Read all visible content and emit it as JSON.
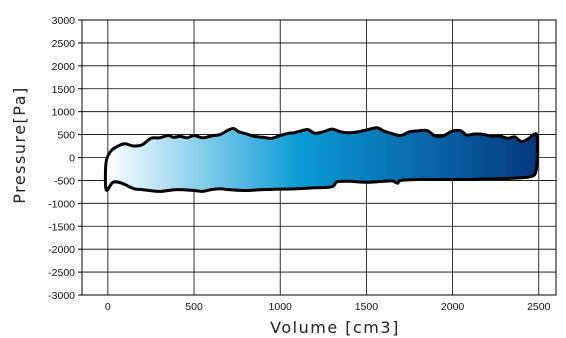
{
  "chart_data": {
    "type": "area",
    "title": "",
    "xlabel": "Volume [cm3]",
    "ylabel": "Pressure[Pa]",
    "xlim": [
      -150,
      2600
    ],
    "ylim": [
      -3000,
      3000
    ],
    "xticks": [
      0,
      500,
      1000,
      1500,
      2000,
      2500
    ],
    "yticks": [
      3000,
      2500,
      2000,
      1500,
      1000,
      500,
      0,
      -500,
      -1000,
      -1500,
      -2000,
      -2500,
      -3000
    ],
    "grid": true,
    "legend": "none",
    "fill_gradient": [
      "#ffffff",
      "#0a9bd6",
      "#06387f"
    ],
    "outline_color": "#000000",
    "series": [
      {
        "x": [
          -10,
          20,
          60,
          100,
          150,
          200,
          250,
          300,
          350,
          380,
          420,
          460,
          500,
          550,
          600,
          650,
          700,
          730,
          760,
          800,
          850,
          900,
          950,
          1000,
          1050,
          1080,
          1120,
          1160,
          1200,
          1250,
          1300,
          1350,
          1400,
          1450,
          1500,
          1560,
          1600,
          1650,
          1700,
          1750,
          1800,
          1850,
          1900,
          1950,
          2000,
          2050,
          2080,
          2120,
          2170,
          2220,
          2270,
          2320,
          2360,
          2400,
          2440,
          2470,
          2490
        ],
        "y": [
          -100,
          150,
          250,
          300,
          250,
          280,
          420,
          430,
          480,
          440,
          460,
          430,
          480,
          430,
          470,
          500,
          600,
          630,
          560,
          520,
          460,
          440,
          420,
          480,
          530,
          540,
          580,
          610,
          530,
          560,
          620,
          560,
          540,
          560,
          600,
          650,
          580,
          520,
          480,
          560,
          580,
          590,
          470,
          480,
          580,
          580,
          490,
          510,
          510,
          470,
          470,
          420,
          450,
          350,
          410,
          500,
          460
        ]
      },
      {
        "x": [
          -10,
          30,
          80,
          150,
          200,
          300,
          400,
          500,
          550,
          600,
          650,
          700,
          800,
          900,
          1000,
          1100,
          1200,
          1300,
          1330,
          1400,
          1500,
          1600,
          1650,
          1680,
          1700,
          1800,
          1900,
          2000,
          2100,
          2200,
          2300,
          2400,
          2450,
          2480,
          2490
        ],
        "y": [
          -700,
          -540,
          -560,
          -680,
          -700,
          -740,
          -700,
          -720,
          -740,
          -700,
          -680,
          -700,
          -720,
          -700,
          -690,
          -680,
          -660,
          -640,
          -530,
          -520,
          -540,
          -520,
          -510,
          -560,
          -500,
          -480,
          -480,
          -480,
          -480,
          -470,
          -460,
          -440,
          -420,
          -350,
          -100
        ]
      }
    ]
  },
  "axes": {
    "xlabel": "Volume [cm3]",
    "ylabel": "Pressure[Pa]"
  }
}
